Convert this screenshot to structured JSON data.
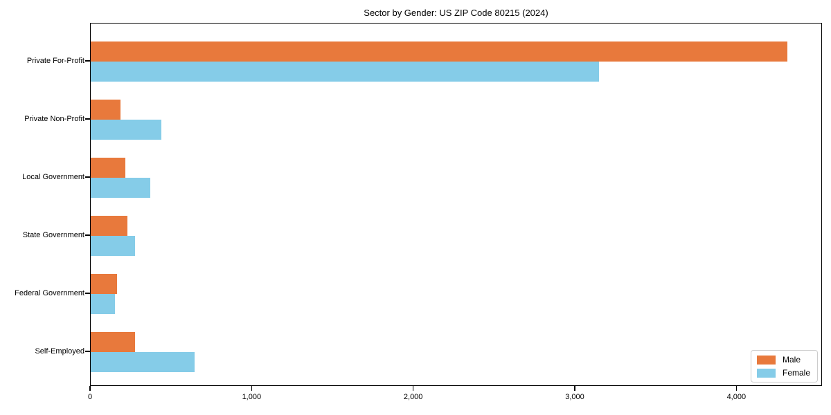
{
  "chart_data": {
    "type": "bar",
    "orientation": "horizontal",
    "title": "Sector by Gender: US ZIP Code 80215 (2024)",
    "categories": [
      "Private For-Profit",
      "Private Non-Profit",
      "Local Government",
      "State Government",
      "Federal Government",
      "Self-Employed"
    ],
    "series": [
      {
        "name": "Male",
        "color": "#E8793C",
        "values": [
          4310,
          183,
          214,
          229,
          164,
          274
        ]
      },
      {
        "name": "Female",
        "color": "#85CCE8",
        "values": [
          3145,
          436,
          369,
          274,
          151,
          643
        ]
      }
    ],
    "xlabel": "",
    "ylabel": "",
    "xlim": [
      0,
      4530
    ],
    "xticks": [
      0,
      1000,
      2000,
      3000,
      4000
    ],
    "xtick_labels": [
      "0",
      "1,000",
      "2,000",
      "3,000",
      "4,000"
    ],
    "grid": false,
    "legend": {
      "position": "lower right"
    }
  }
}
